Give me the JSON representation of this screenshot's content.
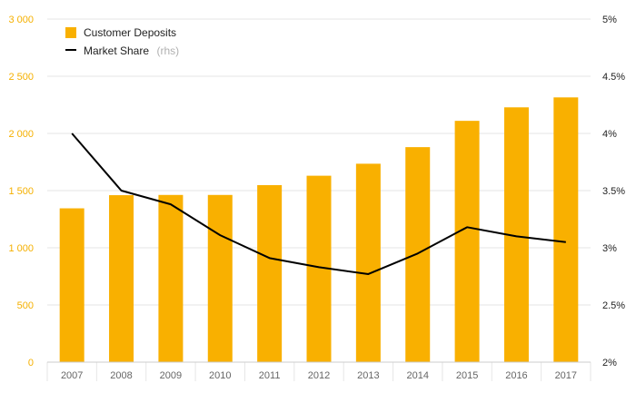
{
  "chart_data": {
    "type": "bar",
    "categories": [
      "2007",
      "2008",
      "2009",
      "2010",
      "2011",
      "2012",
      "2013",
      "2014",
      "2015",
      "2016",
      "2017"
    ],
    "series": [
      {
        "name": "Customer Deposits",
        "type": "bar",
        "axis": "left",
        "color": "#f9b000",
        "values": [
          1345,
          1460,
          1462,
          1462,
          1548,
          1630,
          1735,
          1880,
          2110,
          2228,
          2315
        ]
      },
      {
        "name": "Market Share",
        "name_suffix": "(rhs)",
        "type": "line",
        "axis": "right",
        "color": "#000000",
        "values": [
          4.0,
          3.5,
          3.38,
          3.11,
          2.91,
          2.83,
          2.77,
          2.95,
          3.18,
          3.1,
          3.05
        ]
      }
    ],
    "y_left": {
      "ticks": [
        0,
        500,
        1000,
        1500,
        2000,
        2500,
        3000
      ],
      "tick_labels": [
        "0",
        "500",
        "1 000",
        "1 500",
        "2 000",
        "2 500",
        "3 000"
      ],
      "range": [
        0,
        3000
      ],
      "color": "#f5b000"
    },
    "y_right": {
      "ticks": [
        2,
        2.5,
        3,
        3.5,
        4,
        4.5,
        5
      ],
      "tick_labels": [
        "2%",
        "2.5%",
        "3%",
        "3.5%",
        "4%",
        "4.5%",
        "5%"
      ],
      "range": [
        2,
        5
      ],
      "color": "#222222"
    },
    "grid": true,
    "grid_color": "#e6e6e6",
    "legend": "top-left"
  }
}
